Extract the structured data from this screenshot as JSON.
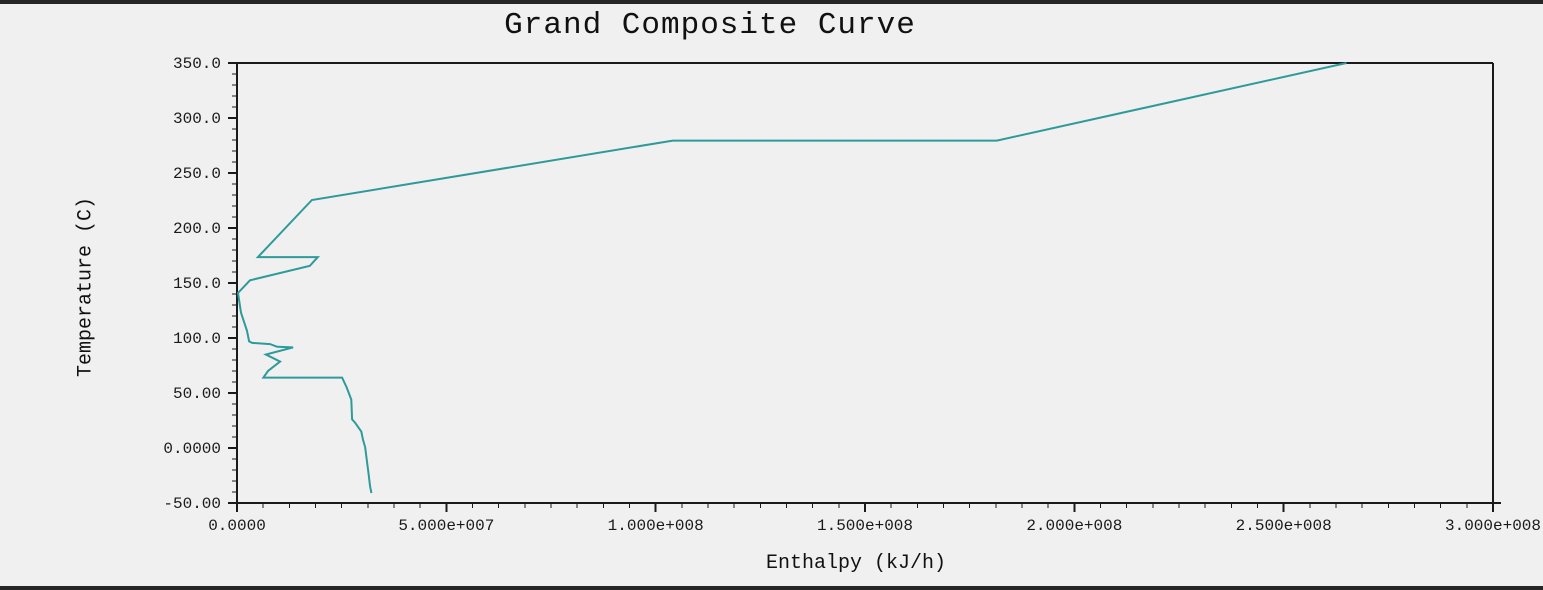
{
  "window": {
    "background_color": "#f0f0f0",
    "border_bar_color": "#262626"
  },
  "chart_data": {
    "type": "line",
    "title": "Grand Composite Curve",
    "xlabel": "Enthalpy (kJ/h)",
    "ylabel": "Temperature (C)",
    "xlim": [
      0,
      300000000
    ],
    "ylim": [
      -50,
      350
    ],
    "grid": false,
    "legend": "none",
    "line_color": "#2E9A9A",
    "axis_color": "#1a1a1a",
    "x_ticks": [
      {
        "value": 0,
        "label": "0.0000"
      },
      {
        "value": 50000000,
        "label": "5.000e+007"
      },
      {
        "value": 100000000,
        "label": "1.000e+008"
      },
      {
        "value": 150000000,
        "label": "1.500e+008"
      },
      {
        "value": 200000000,
        "label": "2.000e+008"
      },
      {
        "value": 250000000,
        "label": "2.500e+008"
      },
      {
        "value": 300000000,
        "label": "3.000e+008"
      }
    ],
    "y_ticks": [
      {
        "value": 350,
        "label": "350.0"
      },
      {
        "value": 300,
        "label": "300.0"
      },
      {
        "value": 250,
        "label": "250.0"
      },
      {
        "value": 200,
        "label": "200.0"
      },
      {
        "value": 150,
        "label": "150.0"
      },
      {
        "value": 100,
        "label": "100.0"
      },
      {
        "value": 50,
        "label": "50.00"
      },
      {
        "value": 0,
        "label": "0.0000"
      },
      {
        "value": -50,
        "label": "-50.00"
      }
    ],
    "x_minor_divisions": 8,
    "y_minor_divisions": 5,
    "series": [
      {
        "name": "grand-composite-curve",
        "points": [
          [
            265000000,
            350
          ],
          [
            181500000,
            279.5
          ],
          [
            104100000,
            279.5
          ],
          [
            17900000,
            225.5
          ],
          [
            5000000,
            173.5
          ],
          [
            19300000,
            173.5
          ],
          [
            17400000,
            165.5
          ],
          [
            3100000,
            152.5
          ],
          [
            250000,
            141
          ],
          [
            950000,
            123
          ],
          [
            2400000,
            106.5
          ],
          [
            2900000,
            97
          ],
          [
            3600000,
            95.5
          ],
          [
            7900000,
            94.5
          ],
          [
            9600000,
            92
          ],
          [
            13400000,
            91.5
          ],
          [
            6900000,
            85
          ],
          [
            10300000,
            78.5
          ],
          [
            7400000,
            70
          ],
          [
            6300000,
            64
          ],
          [
            25100000,
            64
          ],
          [
            26200000,
            55
          ],
          [
            27300000,
            44
          ],
          [
            27500000,
            26
          ],
          [
            28200000,
            23
          ],
          [
            29700000,
            15
          ],
          [
            30100000,
            7.5
          ],
          [
            30600000,
            1
          ],
          [
            31000000,
            -11
          ],
          [
            31400000,
            -23
          ],
          [
            31800000,
            -35
          ],
          [
            32100000,
            -41
          ]
        ]
      }
    ]
  }
}
